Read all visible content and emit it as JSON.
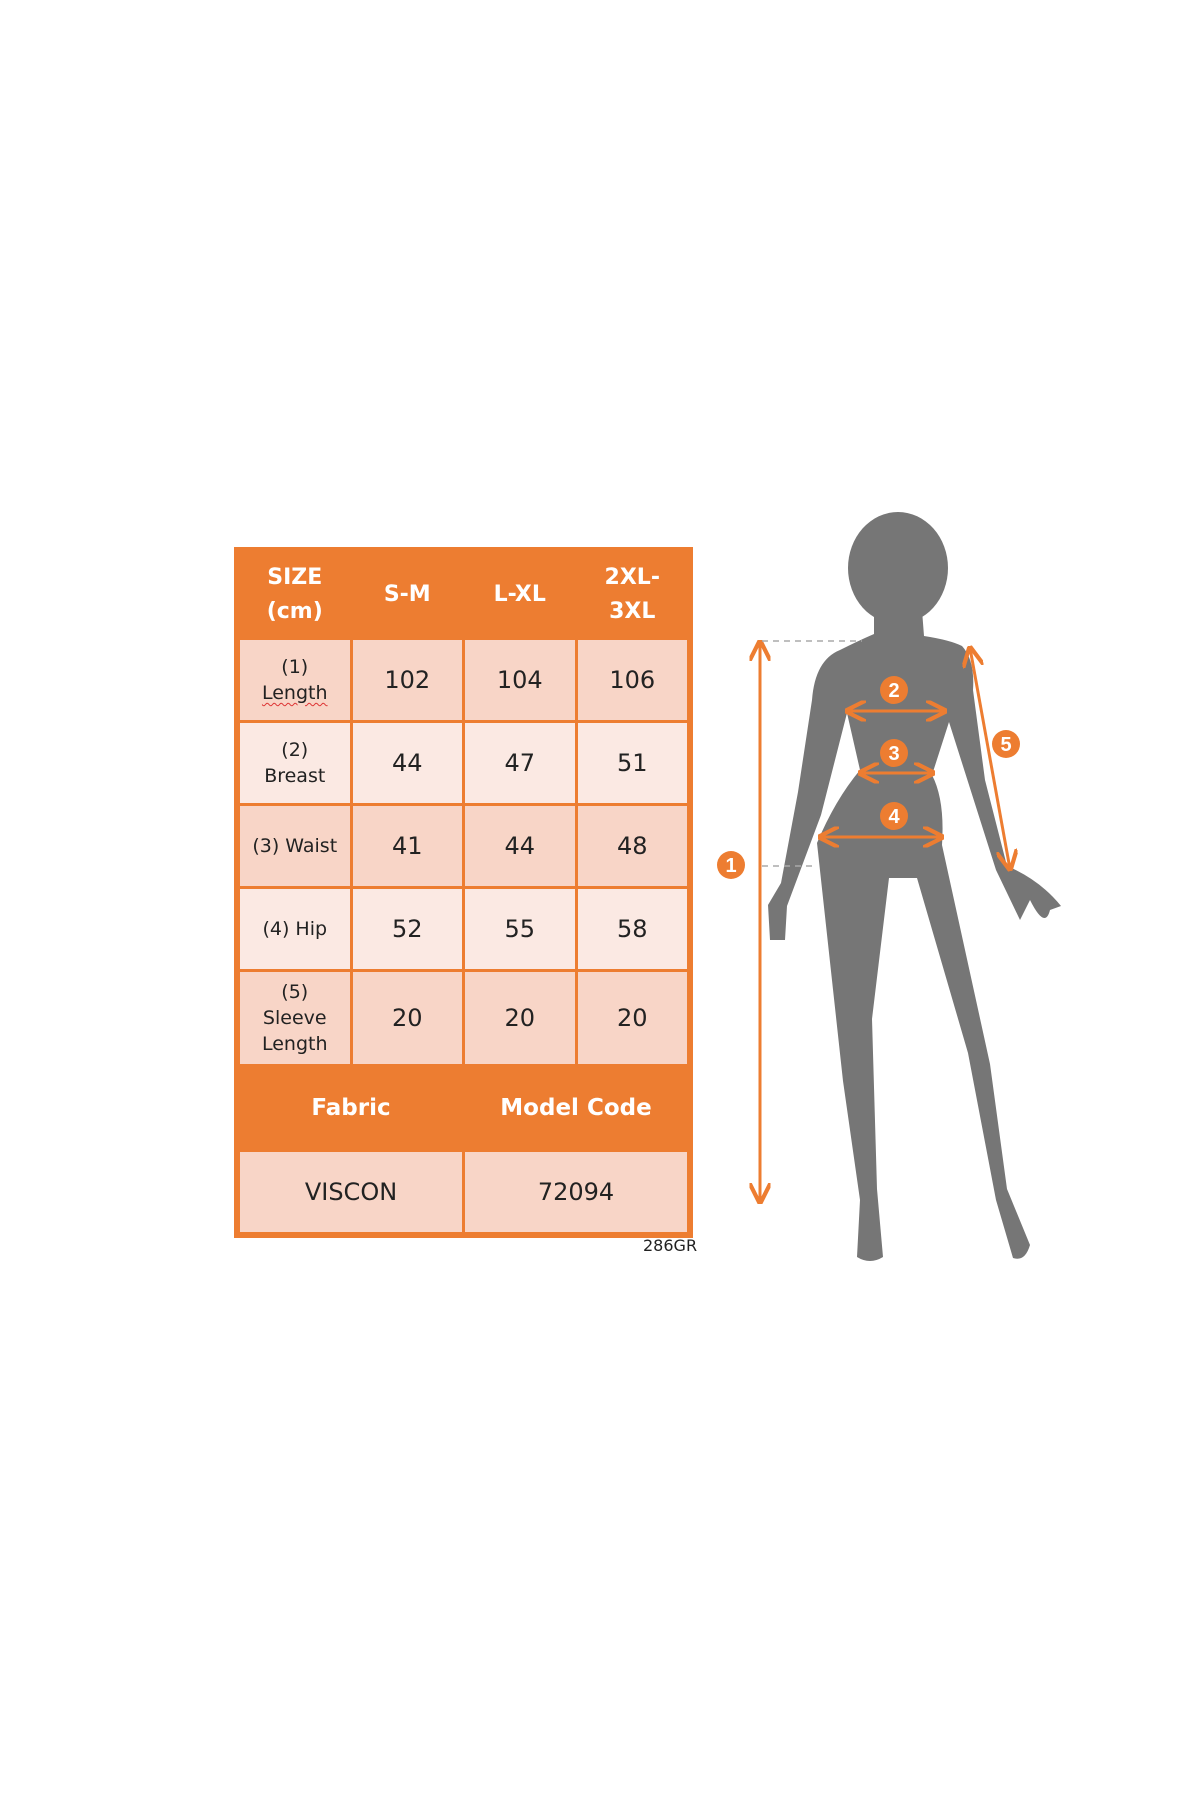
{
  "size_chart": {
    "header": {
      "size_label": [
        "SIZE",
        "(cm)"
      ],
      "sizes": [
        "S-M",
        "L-XL",
        [
          "2XL-",
          "3XL"
        ]
      ]
    },
    "rows": [
      {
        "label": [
          "(1)",
          "Length"
        ],
        "values": [
          "102",
          "104",
          "106"
        ]
      },
      {
        "label": [
          "(2)",
          "Breast"
        ],
        "values": [
          "44",
          "47",
          "51"
        ]
      },
      {
        "label": [
          "(3) Waist"
        ],
        "values": [
          "41",
          "44",
          "48"
        ]
      },
      {
        "label": [
          "(4) Hip"
        ],
        "values": [
          "52",
          "55",
          "58"
        ]
      },
      {
        "label": [
          "(5)",
          "Sleeve",
          "Length"
        ],
        "values": [
          "20",
          "20",
          "20"
        ]
      }
    ],
    "footer": {
      "fabric_label": "Fabric",
      "model_code_label": "Model Code",
      "fabric_value": "VISCON",
      "model_code_value": "72094"
    },
    "product_code": "286GR"
  },
  "figure": {
    "markers": [
      "1",
      "2",
      "3",
      "4",
      "5"
    ]
  },
  "colors": {
    "accent": "#ed7d31",
    "row_dark": "#f8d5c7",
    "row_light": "#fbe9e3",
    "silhouette": "#767676"
  }
}
